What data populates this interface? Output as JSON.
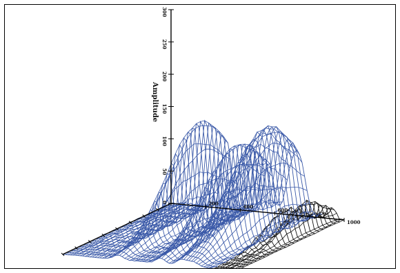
{
  "chart_data": {
    "type": "surface",
    "zlabel": "Amplitude",
    "z_ticks": [
      0,
      50,
      100,
      150,
      200,
      250,
      300
    ],
    "z_tick_labels": [
      "0",
      "50",
      "100",
      "150",
      "200",
      "250",
      "300"
    ],
    "x_ticks": [
      0,
      200,
      400,
      600,
      800,
      1000
    ],
    "x_tick_labels": [
      "200",
      "400",
      "600",
      "1000"
    ],
    "x_tick_label_values": [
      200,
      400,
      600,
      1000
    ],
    "x_range": [
      0,
      1000
    ],
    "z_range": [
      0,
      300
    ],
    "peaks": [
      {
        "x": 320,
        "z": 165
      },
      {
        "x": 565,
        "z": 140
      },
      {
        "x": 680,
        "z": 95
      },
      {
        "x": 720,
        "z": 105
      },
      {
        "x": 760,
        "z": 100
      },
      {
        "x": 880,
        "z": 45
      },
      {
        "x": 935,
        "z": 50
      }
    ],
    "colors": {
      "surface_main": "#3a59a8",
      "surface_back": "#111111",
      "axes": "#000000"
    }
  }
}
